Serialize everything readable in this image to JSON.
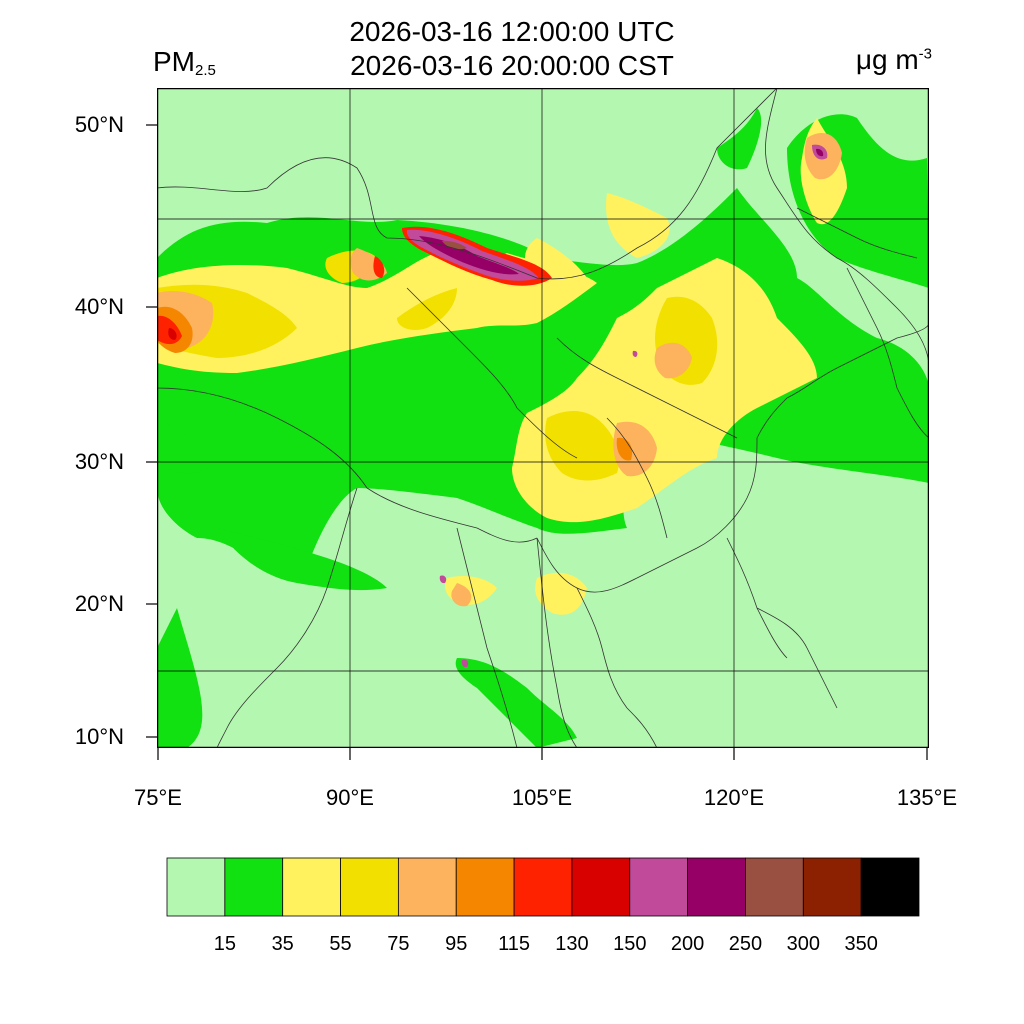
{
  "header": {
    "title_line1": "2026-03-16 12:00:00 UTC",
    "title_line2": "2026-03-16 20:00:00 CST",
    "variable_main": "PM",
    "variable_sub": "2.5",
    "unit_main": "μg m",
    "unit_sup": "-3"
  },
  "map": {
    "field": "PM2.5 concentration",
    "lon_range": [
      75,
      135
    ],
    "lat_range": [
      9.2,
      52.5
    ],
    "background_level": "0-15",
    "y_ticks": [
      "50°N",
      "40°N",
      "30°N",
      "20°N",
      "10°N"
    ],
    "x_ticks": [
      "75°E",
      "90°E",
      "105°E",
      "120°E",
      "135°E"
    ],
    "grid": true
  },
  "colorbar": {
    "colors": [
      "#b4f7b0",
      "#11e011",
      "#fff25e",
      "#f2e000",
      "#fdb35d",
      "#f58700",
      "#ff2200",
      "#d90000",
      "#c24a9b",
      "#960066",
      "#9a5040",
      "#8b2100",
      "#000000"
    ],
    "labels": [
      "15",
      "35",
      "55",
      "75",
      "95",
      "115",
      "130",
      "150",
      "200",
      "250",
      "300",
      "350"
    ]
  }
}
